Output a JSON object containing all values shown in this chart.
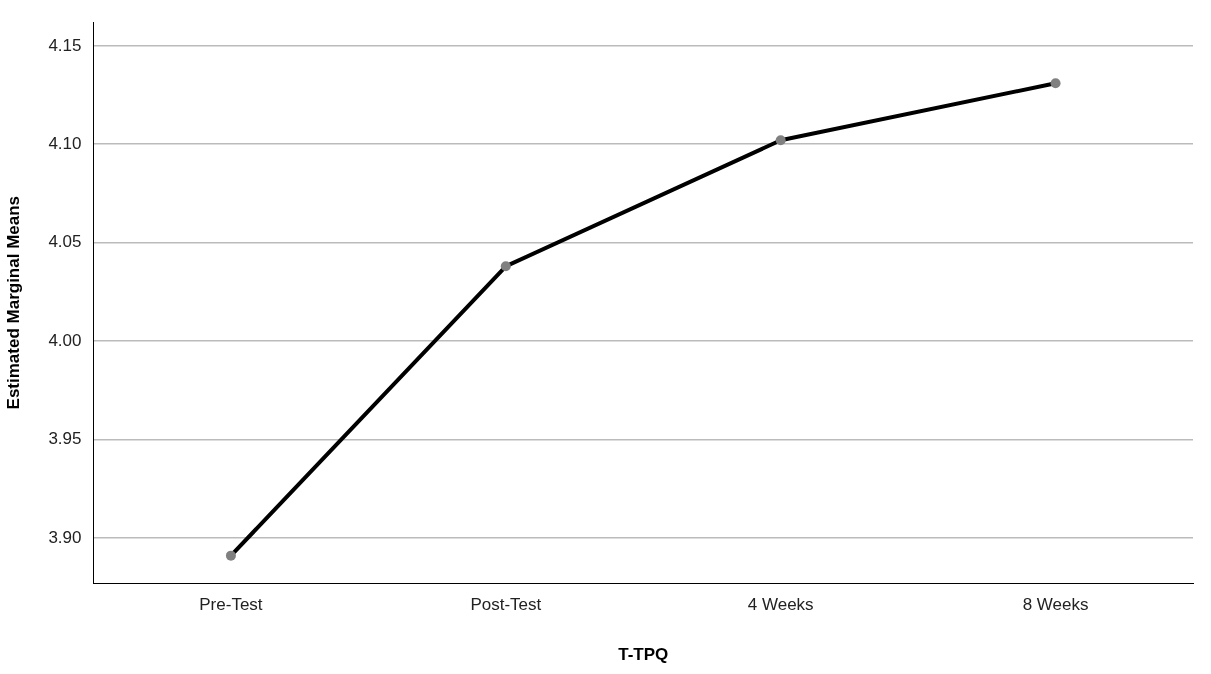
{
  "chart_data": {
    "type": "line",
    "xlabel": "T-TPQ",
    "ylabel": "Estimated Marginal Means",
    "categories": [
      "Pre-Test",
      "Post-Test",
      "4 Weeks",
      "8 Weeks"
    ],
    "series": [
      {
        "color": "#000000",
        "values": [
          3.891,
          4.038,
          4.102,
          4.131
        ]
      }
    ],
    "ylim": [
      3.877,
      4.162
    ],
    "yticks": [
      {
        "value": 3.9,
        "label": "3.90"
      },
      {
        "value": 3.95,
        "label": "3.95"
      },
      {
        "value": 4.0,
        "label": "4.00"
      },
      4.05,
      {
        "value": 4.1,
        "label": "4.10"
      },
      4.15
    ],
    "grid": "y",
    "legend": false,
    "marker": "circle",
    "line_style": "solid"
  }
}
